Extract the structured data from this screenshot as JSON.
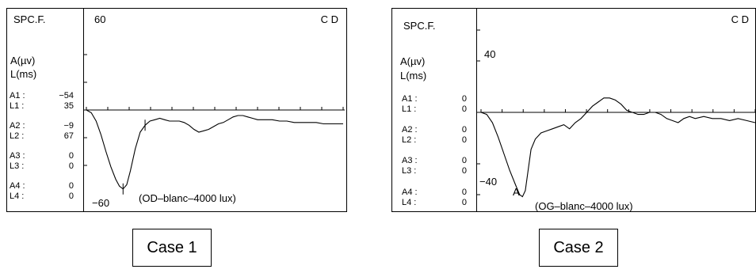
{
  "panels": [
    {
      "header": "SPC.F.",
      "eye_code": "C D",
      "units": [
        "A(µv)",
        "L(ms)"
      ],
      "measures": [
        {
          "label": "A1 :",
          "value": "−54"
        },
        {
          "label": "L1 :",
          "value": "35"
        },
        {
          "label": "A2 :",
          "value": "−9"
        },
        {
          "label": "L2 :",
          "value": "67"
        },
        {
          "label": "A3 :",
          "value": "0"
        },
        {
          "label": "L3 :",
          "value": "0"
        },
        {
          "label": "A4 :",
          "value": "0"
        },
        {
          "label": "L4 :",
          "value": "0"
        }
      ],
      "y_top_label": "60",
      "y_bottom_label": "−60",
      "curve_caption": "(OD–blanc–4000 lux)",
      "case_label": "Case 1"
    },
    {
      "header": "SPC.F.",
      "eye_code": "C D",
      "units": [
        "A(µv)",
        "L(ms)"
      ],
      "measures": [
        {
          "label": "A1 :",
          "value": "0"
        },
        {
          "label": "L1 :",
          "value": "0"
        },
        {
          "label": "A2 :",
          "value": "0"
        },
        {
          "label": "L2 :",
          "value": "0"
        },
        {
          "label": "A3 :",
          "value": "0"
        },
        {
          "label": "L3 :",
          "value": "0"
        },
        {
          "label": "A4 :",
          "value": "0"
        },
        {
          "label": "L4 :",
          "value": "0"
        }
      ],
      "y_top_label": "40",
      "y_bottom_label": "−40",
      "peak_marker": "A",
      "curve_caption": "(OG–blanc–4000 lux)",
      "case_label": "Case 2"
    }
  ],
  "chart_data": [
    {
      "type": "line",
      "title": "",
      "ylim": [
        -60,
        60
      ],
      "grid": false,
      "series": [
        {
          "values": [
            [
              0,
              0
            ],
            [
              4,
              -2
            ],
            [
              8,
              -8
            ],
            [
              12,
              -18
            ],
            [
              16,
              -30
            ],
            [
              20,
              -41
            ],
            [
              24,
              -50
            ],
            [
              27,
              -55
            ],
            [
              30,
              -57
            ],
            [
              33,
              -54
            ],
            [
              36,
              -44
            ],
            [
              40,
              -28
            ],
            [
              44,
              -16
            ],
            [
              48,
              -11
            ],
            [
              52,
              -8
            ],
            [
              56,
              -7
            ],
            [
              60,
              -6
            ],
            [
              64,
              -7
            ],
            [
              68,
              -8
            ],
            [
              72,
              -8
            ],
            [
              76,
              -8
            ],
            [
              80,
              -9
            ],
            [
              84,
              -11
            ],
            [
              88,
              -14
            ],
            [
              92,
              -16
            ],
            [
              96,
              -15
            ],
            [
              100,
              -14
            ],
            [
              104,
              -12
            ],
            [
              108,
              -10
            ],
            [
              112,
              -9
            ],
            [
              116,
              -7
            ],
            [
              120,
              -5
            ],
            [
              124,
              -4
            ],
            [
              128,
              -4
            ],
            [
              132,
              -5
            ],
            [
              136,
              -6
            ],
            [
              140,
              -7
            ],
            [
              146,
              -7
            ],
            [
              152,
              -7
            ],
            [
              158,
              -8
            ],
            [
              164,
              -8
            ],
            [
              170,
              -9
            ],
            [
              176,
              -9
            ],
            [
              182,
              -9
            ],
            [
              188,
              -9
            ],
            [
              194,
              -10
            ],
            [
              200,
              -10
            ],
            [
              210,
              -10
            ]
          ]
        }
      ]
    },
    {
      "type": "line",
      "title": "",
      "ylim": [
        -40,
        40
      ],
      "grid": false,
      "series": [
        {
          "values": [
            [
              0,
              0
            ],
            [
              4,
              -1
            ],
            [
              8,
              -5
            ],
            [
              12,
              -12
            ],
            [
              16,
              -20
            ],
            [
              20,
              -28
            ],
            [
              24,
              -35
            ],
            [
              27,
              -40
            ],
            [
              29,
              -41
            ],
            [
              31,
              -38
            ],
            [
              33,
              -28
            ],
            [
              35,
              -18
            ],
            [
              38,
              -13
            ],
            [
              42,
              -10
            ],
            [
              46,
              -9
            ],
            [
              50,
              -8
            ],
            [
              54,
              -7
            ],
            [
              58,
              -6
            ],
            [
              62,
              -8
            ],
            [
              66,
              -5
            ],
            [
              70,
              -3
            ],
            [
              74,
              0
            ],
            [
              78,
              3
            ],
            [
              82,
              5
            ],
            [
              86,
              7
            ],
            [
              90,
              7
            ],
            [
              94,
              6
            ],
            [
              98,
              4
            ],
            [
              102,
              1
            ],
            [
              106,
              0
            ],
            [
              110,
              -1
            ],
            [
              114,
              -1
            ],
            [
              118,
              0
            ],
            [
              122,
              0
            ],
            [
              126,
              -1
            ],
            [
              130,
              -3
            ],
            [
              134,
              -4
            ],
            [
              138,
              -5
            ],
            [
              142,
              -3
            ],
            [
              146,
              -2
            ],
            [
              150,
              -3
            ],
            [
              156,
              -2
            ],
            [
              162,
              -3
            ],
            [
              168,
              -3
            ],
            [
              174,
              -4
            ],
            [
              180,
              -3
            ],
            [
              186,
              -4
            ],
            [
              192,
              -5
            ]
          ]
        }
      ]
    }
  ]
}
